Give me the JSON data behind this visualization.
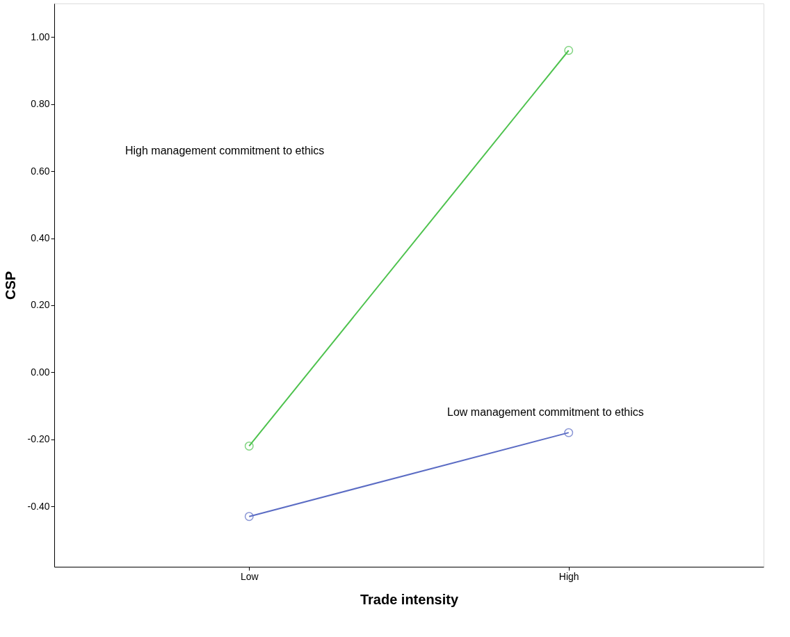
{
  "chart_data": {
    "type": "line",
    "xlabel": "Trade intensity",
    "ylabel": "CSP",
    "categories": [
      "Low",
      "High"
    ],
    "series": [
      {
        "color": "#4dc24d",
        "values": [
          -0.22,
          0.96
        ]
      },
      {
        "color": "#5b6cc4",
        "values": [
          -0.43,
          -0.18
        ]
      }
    ],
    "annotations": [
      "High management commitment to ethics",
      "Low management commitment to ethics"
    ],
    "ylim": [
      -0.58,
      1.1
    ],
    "yticks": [
      {
        "value": -0.4,
        "label": "-0.40"
      },
      {
        "value": -0.2,
        "label": "-0.20"
      },
      {
        "value": 0,
        "label": "0.00"
      },
      {
        "value": 0.2,
        "label": "0.20"
      },
      {
        "value": 0.4,
        "label": "0.40"
      },
      {
        "value": 0.6,
        "label": "0.60"
      },
      {
        "value": 0.8,
        "label": "0.80"
      },
      {
        "value": 1.0,
        "label": "1.00"
      }
    ],
    "grid": false,
    "legend": false,
    "marker": "circle",
    "line_style": "solid"
  }
}
